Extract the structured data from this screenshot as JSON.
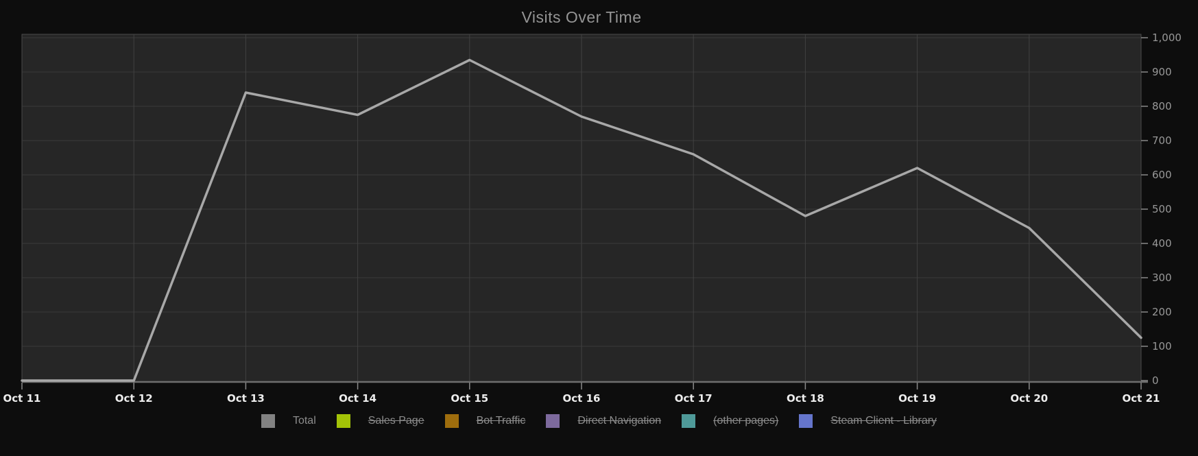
{
  "title": "Visits Over Time",
  "chart_data": {
    "type": "line",
    "title": "Visits Over Time",
    "categories": [
      "Oct 11",
      "Oct 12",
      "Oct 13",
      "Oct 14",
      "Oct 15",
      "Oct 16",
      "Oct 17",
      "Oct 18",
      "Oct 19",
      "Oct 20",
      "Oct 21"
    ],
    "series": [
      {
        "name": "Total",
        "values": [
          0,
          0,
          840,
          775,
          935,
          770,
          660,
          480,
          620,
          445,
          125
        ],
        "color": "#a8a8a8",
        "visible": true
      }
    ],
    "xlabel": "",
    "ylabel": "",
    "ylim": [
      0,
      1000
    ],
    "y_ticks": [
      0,
      100,
      200,
      300,
      400,
      500,
      600,
      700,
      800,
      900,
      1000
    ],
    "y_tick_labels": [
      "0",
      "100",
      "200",
      "300",
      "400",
      "500",
      "600",
      "700",
      "800",
      "900",
      "1,000"
    ],
    "y_axis_side": "right",
    "grid": true,
    "legend_position": "bottom",
    "legend": [
      {
        "label": "Total",
        "swatch_color": "#828282",
        "struck_through": false
      },
      {
        "label": "Sales Page",
        "swatch_color": "#a3c307",
        "struck_through": true
      },
      {
        "label": "Bot Traffic",
        "swatch_color": "#9e6d0d",
        "struck_through": true
      },
      {
        "label": "Direct Navigation",
        "swatch_color": "#7d6a9d",
        "struck_through": true
      },
      {
        "label": "(other pages)",
        "swatch_color": "#4f9a99",
        "struck_through": true
      },
      {
        "label": "Steam Client - Library",
        "swatch_color": "#6575cb",
        "struck_through": true
      }
    ]
  },
  "colors": {
    "page_bg": "#0d0d0d",
    "plot_bg": "#262626",
    "grid_horizontal": "#3a3a3a",
    "grid_vertical": "#414141",
    "plot_border": "#4a4a4a",
    "axis_bottom": "#6e6e6e",
    "tick": "#8a8a8a",
    "line": "#a8a8a8",
    "title_text": "#959595",
    "x_label_text": "#ededed",
    "y_label_text": "#989898",
    "legend_text": "#8d8d8d"
  }
}
